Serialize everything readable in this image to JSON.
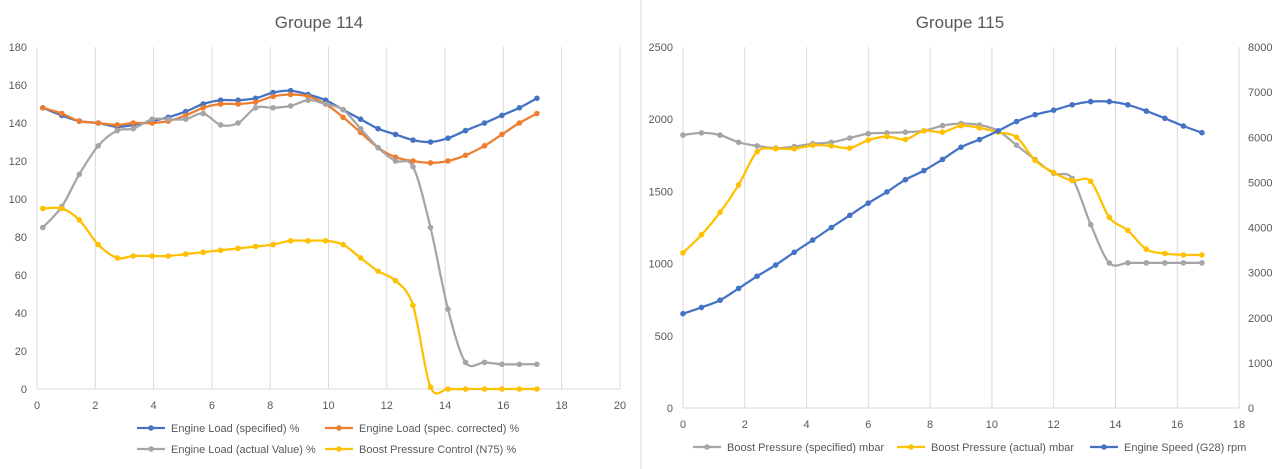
{
  "charts": {
    "left": {
      "title": "Groupe 114"
    },
    "right": {
      "title": "Groupe 115"
    }
  },
  "chart_data": [
    {
      "type": "line",
      "title": "Groupe 114",
      "xlim": [
        0,
        20
      ],
      "xticks": [
        0,
        2,
        4,
        6,
        8,
        10,
        12,
        14,
        16,
        18,
        20
      ],
      "ylim": [
        0,
        180
      ],
      "yticks": [
        0,
        20,
        40,
        60,
        80,
        100,
        120,
        140,
        160,
        180
      ],
      "grid": "vertical",
      "legend": "bottom",
      "series": [
        {
          "name": "Engine Load (specified) %",
          "color": "#4472C4",
          "x": [
            0.2,
            0.85,
            1.45,
            2.1,
            2.75,
            3.3,
            3.95,
            4.5,
            5.1,
            5.7,
            6.3,
            6.9,
            7.5,
            8.1,
            8.7,
            9.3,
            9.9,
            10.5,
            11.1,
            11.7,
            12.3,
            12.9,
            13.5,
            14.1,
            14.7,
            15.35,
            15.95,
            16.55,
            17.15
          ],
          "y": [
            148,
            144,
            141,
            140,
            138,
            139,
            141,
            143,
            146,
            150,
            152,
            152,
            153,
            156,
            157,
            155,
            152,
            147,
            142,
            137,
            134,
            131,
            130,
            132,
            136,
            140,
            144,
            148,
            153
          ]
        },
        {
          "name": "Engine Load (spec. corrected) %",
          "color": "#ED7D31",
          "x": [
            0.2,
            0.85,
            1.45,
            2.1,
            2.75,
            3.3,
            3.95,
            4.5,
            5.1,
            5.7,
            6.3,
            6.9,
            7.5,
            8.1,
            8.7,
            9.3,
            9.9,
            10.5,
            11.1,
            11.7,
            12.3,
            12.9,
            13.5,
            14.1,
            14.7,
            15.35,
            15.95,
            16.55,
            17.15
          ],
          "y": [
            148,
            145,
            141,
            140,
            139,
            140,
            140,
            141,
            144,
            148,
            150,
            150,
            151,
            154,
            155,
            154,
            150,
            143,
            135,
            127,
            122,
            120,
            119,
            120,
            123,
            128,
            134,
            140,
            145
          ]
        },
        {
          "name": "Engine Load (actual Value) %",
          "color": "#A5A5A5",
          "x": [
            0.2,
            0.85,
            1.45,
            2.1,
            2.75,
            3.3,
            3.95,
            4.5,
            5.1,
            5.7,
            6.3,
            6.9,
            7.5,
            8.1,
            8.7,
            9.3,
            9.9,
            10.5,
            11.1,
            11.7,
            12.3,
            12.9,
            13.5,
            14.1,
            14.7,
            15.35,
            15.95,
            16.55,
            17.15
          ],
          "y": [
            85,
            96,
            113,
            128,
            136,
            137,
            142,
            142,
            142,
            145,
            139,
            140,
            148,
            148,
            149,
            152,
            150,
            147,
            137,
            127,
            120,
            117,
            85,
            42,
            14,
            14,
            13,
            13,
            13
          ]
        },
        {
          "name": "Boost Pressure Control (N75) %",
          "color": "#FFC000",
          "x": [
            0.2,
            0.85,
            1.45,
            2.1,
            2.75,
            3.3,
            3.95,
            4.5,
            5.1,
            5.7,
            6.3,
            6.9,
            7.5,
            8.1,
            8.7,
            9.3,
            9.9,
            10.5,
            11.1,
            11.7,
            12.3,
            12.9,
            13.5,
            14.1,
            14.7,
            15.35,
            15.95,
            16.55,
            17.15
          ],
          "y": [
            95,
            95,
            89,
            76,
            69,
            70,
            70,
            70,
            71,
            72,
            73,
            74,
            75,
            76,
            78,
            78,
            78,
            76,
            69,
            62,
            57,
            44,
            1,
            0,
            0,
            0,
            0,
            0,
            0
          ]
        }
      ]
    },
    {
      "type": "line",
      "title": "Groupe 115",
      "xlim": [
        0,
        18
      ],
      "xticks": [
        0,
        2,
        4,
        6,
        8,
        10,
        12,
        14,
        16,
        18
      ],
      "ylim": [
        0,
        2500
      ],
      "yticks": [
        0,
        500,
        1000,
        1500,
        2000,
        2500
      ],
      "y2lim": [
        0,
        8000
      ],
      "y2ticks": [
        0,
        1000,
        2000,
        3000,
        4000,
        5000,
        6000,
        7000,
        8000
      ],
      "grid": "vertical",
      "legend": "bottom",
      "series": [
        {
          "name": "Boost Pressure (specified) mbar",
          "color": "#A5A5A5",
          "axis": "left",
          "x": [
            0,
            0.6,
            1.2,
            1.8,
            2.4,
            3,
            3.6,
            4.2,
            4.8,
            5.4,
            6,
            6.6,
            7.2,
            7.8,
            8.4,
            9,
            9.6,
            10.2,
            10.8,
            11.4,
            12,
            12.6,
            13.2,
            13.8,
            14.4,
            15,
            15.6,
            16.2,
            16.8
          ],
          "y": [
            1890,
            1905,
            1890,
            1840,
            1815,
            1800,
            1810,
            1830,
            1840,
            1870,
            1900,
            1905,
            1910,
            1920,
            1955,
            1970,
            1960,
            1920,
            1820,
            1720,
            1625,
            1590,
            1270,
            1005,
            1005,
            1005,
            1005,
            1005,
            1005
          ]
        },
        {
          "name": "Boost Pressure (actual) mbar",
          "color": "#FFC000",
          "axis": "left",
          "x": [
            0,
            0.6,
            1.2,
            1.8,
            2.4,
            3,
            3.6,
            4.2,
            4.8,
            5.4,
            6,
            6.6,
            7.2,
            7.8,
            8.4,
            9,
            9.6,
            10.2,
            10.8,
            11.4,
            12,
            12.6,
            13.2,
            13.8,
            14.4,
            15,
            15.6,
            16.2,
            16.8
          ],
          "y": [
            1075,
            1200,
            1355,
            1545,
            1775,
            1795,
            1795,
            1820,
            1815,
            1800,
            1855,
            1880,
            1860,
            1920,
            1910,
            1955,
            1940,
            1910,
            1875,
            1715,
            1630,
            1575,
            1570,
            1320,
            1230,
            1100,
            1070,
            1060,
            1060
          ]
        },
        {
          "name": "Engine Speed (G28) rpm",
          "color": "#4472C4",
          "axis": "right",
          "x": [
            0,
            0.6,
            1.2,
            1.8,
            2.4,
            3,
            3.6,
            4.2,
            4.8,
            5.4,
            6,
            6.6,
            7.2,
            7.8,
            8.4,
            9,
            9.6,
            10.2,
            10.8,
            11.4,
            12,
            12.6,
            13.2,
            13.8,
            14.4,
            15,
            15.6,
            16.2,
            16.8
          ],
          "y": [
            2090,
            2230,
            2390,
            2650,
            2920,
            3170,
            3450,
            3720,
            4000,
            4270,
            4540,
            4790,
            5060,
            5260,
            5510,
            5780,
            5950,
            6140,
            6350,
            6500,
            6600,
            6720,
            6790,
            6790,
            6720,
            6580,
            6420,
            6250,
            6100
          ]
        }
      ]
    }
  ]
}
